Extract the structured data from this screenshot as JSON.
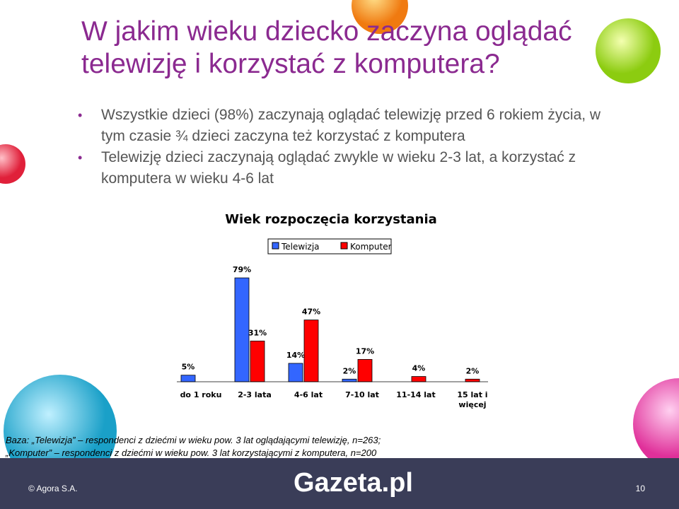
{
  "title": "W jakim wieku dziecko zaczyna oglądać telewizję i korzystać z komputera?",
  "bullets": [
    "Wszystkie dzieci (98%) zaczynają oglądać telewizję przed 6 rokiem życia, w tym czasie ¾ dzieci zaczyna też korzystać z komputera",
    "Telewizję dzieci zaczynają oglądać zwykle w wieku 2-3 lat, a korzystać z komputera w wieku 4-6 lat"
  ],
  "chart_data": {
    "type": "bar",
    "title": "Wiek rozpoczęcia korzystania",
    "categories": [
      "do 1 roku",
      "2-3 lata",
      "4-6 lat",
      "7-10 lat",
      "11-14 lat",
      "15 lat i więcej"
    ],
    "series": [
      {
        "name": "Telewizja",
        "color": "#3366ff",
        "values": [
          5,
          79,
          14,
          2,
          null,
          null
        ],
        "value_labels": [
          "5%",
          "79%",
          "14%",
          "2%",
          null,
          null
        ]
      },
      {
        "name": "Komputer",
        "color": "#ff0000",
        "values": [
          null,
          31,
          47,
          17,
          4,
          2
        ],
        "value_labels": [
          null,
          "31%",
          "47%",
          "17%",
          "4%",
          "2%"
        ]
      }
    ]
  },
  "footnote": [
    "Baza: „Telewizja” – respondenci z dziećmi w wieku pow. 3 lat oglądającymi telewizję, n=263;",
    "„Komputer” – respondenci z dziećmi w wieku pow. 3 lat korzystającymi z komputera, n=200"
  ],
  "footer": {
    "copyright": "© Agora S.A.",
    "logo": "Gazeta.pl",
    "page": "10"
  }
}
